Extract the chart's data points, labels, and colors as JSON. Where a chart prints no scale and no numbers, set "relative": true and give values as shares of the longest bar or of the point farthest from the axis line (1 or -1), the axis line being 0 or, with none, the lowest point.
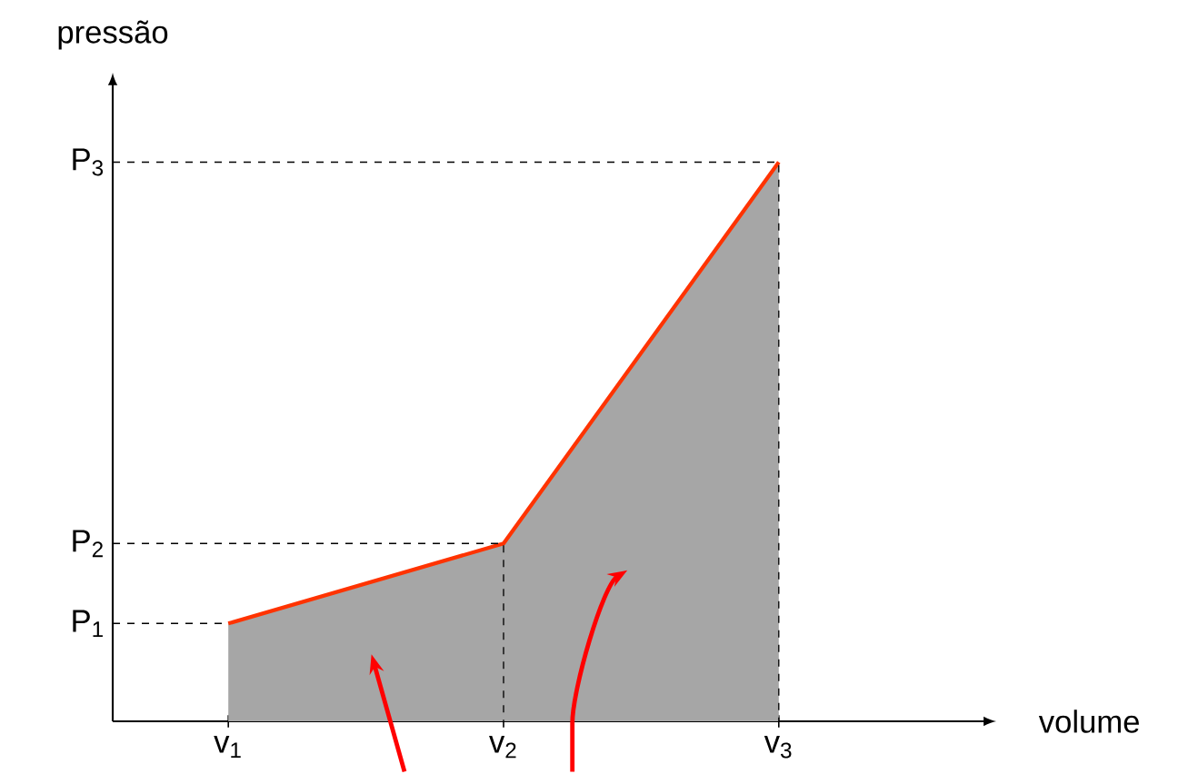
{
  "chart_data": {
    "type": "area",
    "xlabel": "volume",
    "ylabel": "pressão",
    "relative": true,
    "categories": [
      "v$_{1}$",
      "v$_{2}$",
      "v$_{3}$"
    ],
    "series": [
      {
        "color": "#a6a6a6",
        "values": [
          0.175,
          0.318,
          1
        ]
      }
    ],
    "ref_lines": [
      {
        "axis": "y",
        "value": 0.175,
        "label": "P$_{1}$",
        "line_style": "dashed",
        "color": "#000000"
      },
      {
        "axis": "y",
        "value": 0.318,
        "label": "P$_{2}$",
        "line_style": "dashed",
        "color": "#000000"
      },
      {
        "axis": "y",
        "value": 1,
        "label": "P$_{3}$",
        "line_style": "dashed",
        "color": "#000000"
      }
    ]
  }
}
